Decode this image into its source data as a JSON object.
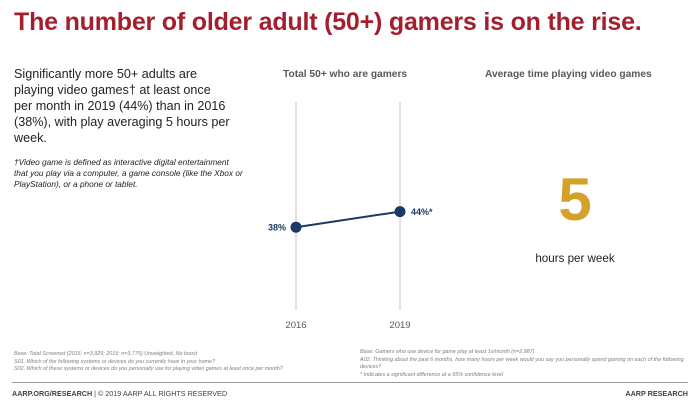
{
  "title": "The number of older adult (50+) gamers is on the rise.",
  "summary": "Significantly more 50+ adults are playing video games† at least once per month in 2019 (44%) than in 2016 (38%), with play averaging 5 hours per week.",
  "footnote": "†Video game is defined as interactive digital entertainment that you play via a computer, a game console (like the Xbox or PlayStation), or a phone or tablet.",
  "chart_data": [
    {
      "type": "line",
      "title": "Total 50+ who are gamers",
      "x": [
        "2016",
        "2019"
      ],
      "series": [
        {
          "values": [
            38,
            44
          ],
          "labels": [
            "38%",
            "44%*"
          ]
        }
      ],
      "ylim": [
        0,
        100
      ],
      "line_color": "#1b3a63"
    },
    {
      "type": "table",
      "title": "Average time playing video games",
      "value": "5",
      "unit": "hours per week",
      "value_color": "#d4a12a"
    }
  ],
  "notes_left": [
    "Base: Total Screened (2016: n=3,929; 2019: n=3,775) Unweighted, No boost",
    "S01. Which of the following systems or devices do you currently have in your home?",
    "S02. Which of these systems or devices do you personally use for playing video games at least once per month?"
  ],
  "notes_right": [
    "Base: Gamers who use device for game play at least 1x/month (n=2,887)",
    "A02. Thinking about the past 6 months, how many hours per week would you say you personally spend gaming on each of the following devices?",
    "* Indicates a significant difference at a 95% confidence level"
  ],
  "footer": {
    "left_bold": "AARP.ORG/RESEARCH",
    "left_rest": " | © 2019 AARP ALL RIGHTS RESERVED",
    "right": "AARP RESEARCH"
  },
  "colors": {
    "title": "#a31f2e",
    "accent_gold": "#d4a12a",
    "line": "#1b3a63"
  }
}
